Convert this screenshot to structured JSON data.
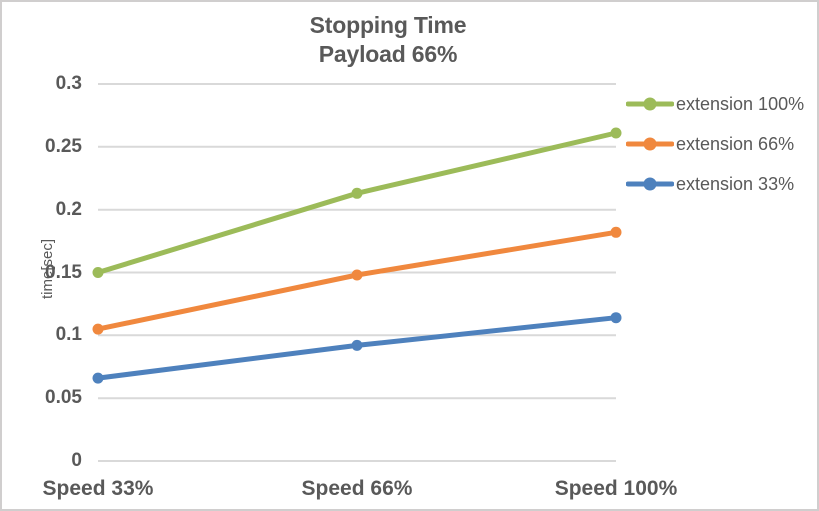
{
  "window": {
    "background": "#ffffff",
    "border_color": "#d0cece"
  },
  "title": {
    "line1": "Stopping Time",
    "line2": "Payload 66%",
    "color": "#595959"
  },
  "y_axis": {
    "title": "time[sec]",
    "tick_labels": [
      "0.3",
      "0.25",
      "0.2",
      "0.15",
      "0.1",
      "0.05",
      "0"
    ],
    "tick_values": [
      0.3,
      0.25,
      0.2,
      0.15,
      0.1,
      0.05,
      0
    ]
  },
  "x_axis": {
    "labels": [
      "Speed 33%",
      "Speed 66%",
      "Speed 100%"
    ]
  },
  "legend": {
    "position": "right",
    "entries": [
      {
        "label": "extension 100%",
        "color": "#9cbb59"
      },
      {
        "label": "extension 66%",
        "color": "#f0883e"
      },
      {
        "label": "extension 33%",
        "color": "#4e81bd"
      }
    ]
  },
  "colors": {
    "gridline": "#d9d9d9",
    "text": "#595959",
    "green_series": "#9cbb59",
    "orange_series": "#f0883e",
    "blue_series": "#4e81bd"
  },
  "chart_data": {
    "type": "line",
    "title": "Stopping Time\nPayload 66%",
    "xlabel": "",
    "ylabel": "time[sec]",
    "categories": [
      "Speed 33%",
      "Speed 66%",
      "Speed 100%"
    ],
    "series": [
      {
        "name": "extension 100%",
        "color": "#9cbb59",
        "values": [
          0.15,
          0.213,
          0.261
        ]
      },
      {
        "name": "extension 66%",
        "color": "#f0883e",
        "values": [
          0.105,
          0.148,
          0.182
        ]
      },
      {
        "name": "extension 33%",
        "color": "#4e81bd",
        "values": [
          0.066,
          0.092,
          0.114
        ]
      }
    ],
    "ylim": [
      0,
      0.3
    ],
    "ytick_step": 0.05,
    "grid": "horizontal",
    "legend_position": "right",
    "marker": "circle"
  }
}
